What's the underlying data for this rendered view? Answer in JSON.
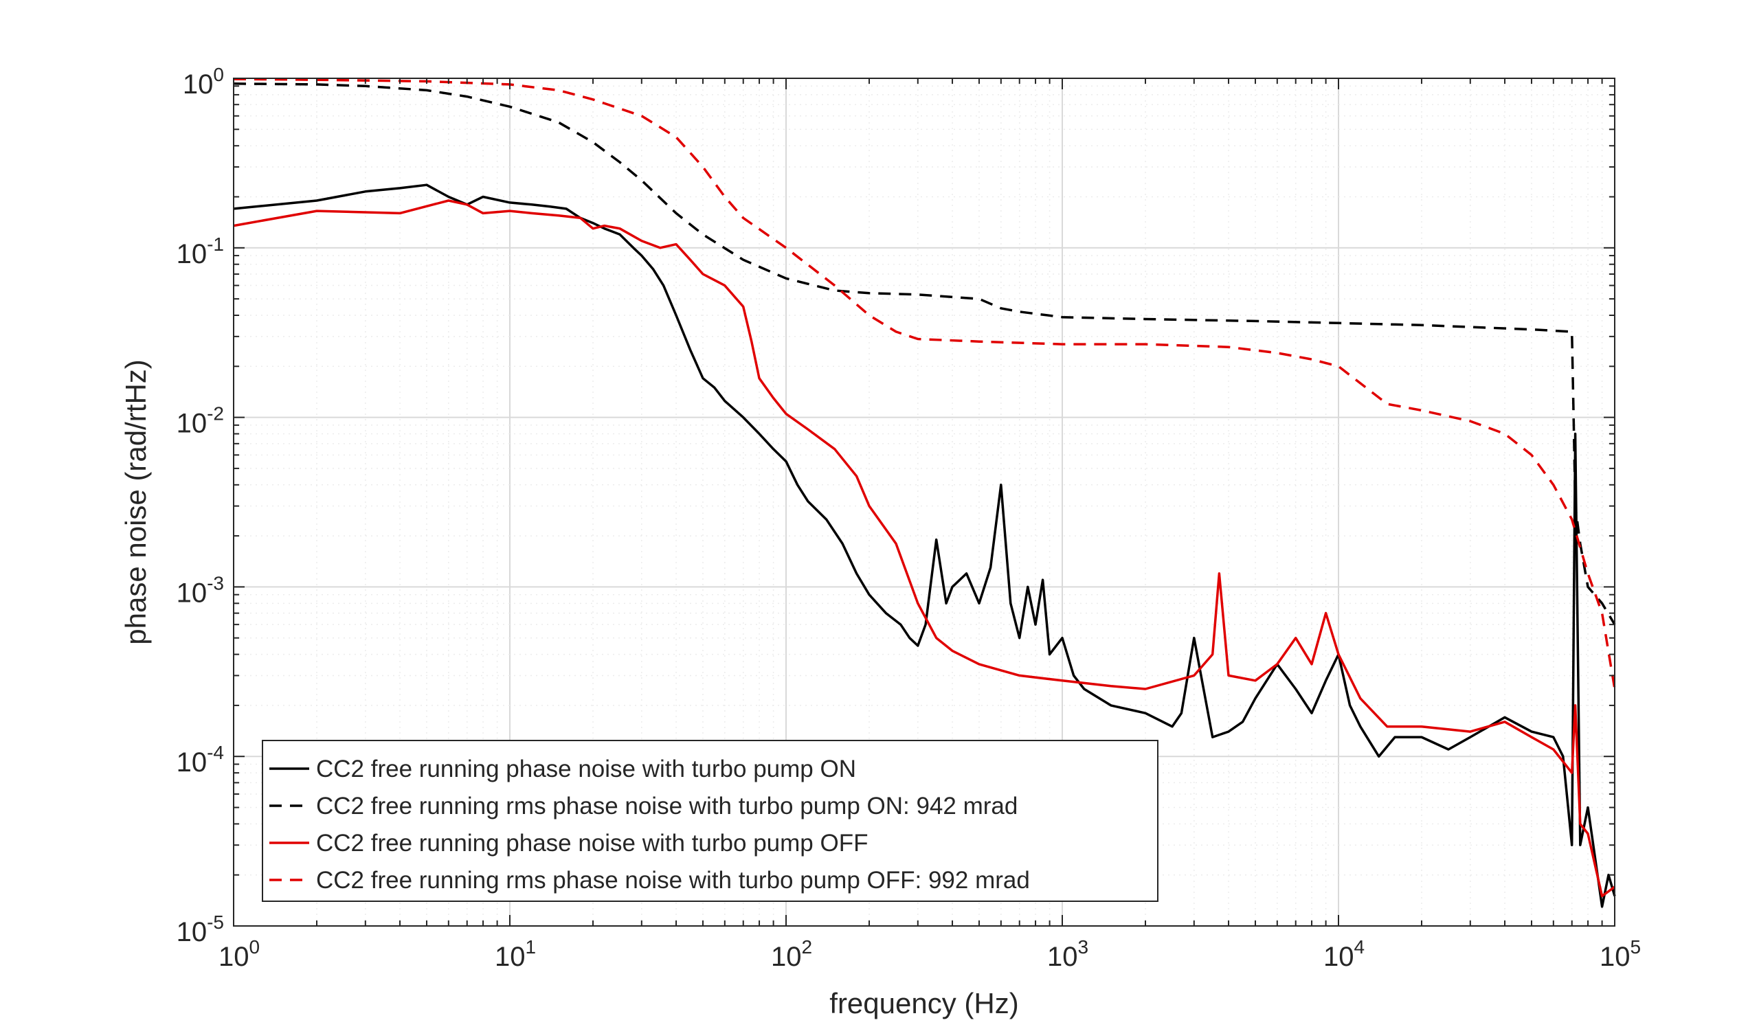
{
  "chart_data": {
    "type": "line",
    "title": "",
    "xlabel": "frequency (Hz)",
    "ylabel": "phase noise (rad/rtHz)",
    "x_scale": "log",
    "y_scale": "log",
    "xlim": [
      1,
      100000
    ],
    "ylim": [
      1e-05,
      1
    ],
    "grid": true,
    "legend_position": "bottom-left",
    "x_ticks": [
      {
        "value": 1,
        "base": "10",
        "exp": "0"
      },
      {
        "value": 10,
        "base": "10",
        "exp": "1"
      },
      {
        "value": 100,
        "base": "10",
        "exp": "2"
      },
      {
        "value": 1000,
        "base": "10",
        "exp": "3"
      },
      {
        "value": 10000,
        "base": "10",
        "exp": "4"
      },
      {
        "value": 100000,
        "base": "10",
        "exp": "5"
      }
    ],
    "y_ticks": [
      {
        "value": 1,
        "base": "10",
        "exp": "0"
      },
      {
        "value": 0.1,
        "base": "10",
        "exp": "-1"
      },
      {
        "value": 0.01,
        "base": "10",
        "exp": "-2"
      },
      {
        "value": 0.001,
        "base": "10",
        "exp": "-3"
      },
      {
        "value": 0.0001,
        "base": "10",
        "exp": "-4"
      },
      {
        "value": 1e-05,
        "base": "10",
        "exp": "-5"
      }
    ],
    "series": [
      {
        "name": "CC2 free running phase noise with turbo pump ON",
        "color": "#000000",
        "dash": "solid",
        "x": [
          1,
          2,
          3,
          4,
          5,
          6,
          7,
          8,
          10,
          12,
          14,
          16,
          18,
          20,
          22,
          25,
          28,
          30,
          33,
          36,
          40,
          45,
          50,
          55,
          60,
          70,
          80,
          90,
          100,
          110,
          120,
          140,
          160,
          180,
          200,
          230,
          260,
          280,
          300,
          320,
          350,
          380,
          400,
          450,
          500,
          550,
          600,
          650,
          700,
          750,
          800,
          850,
          900,
          1000,
          1100,
          1200,
          1500,
          2000,
          2500,
          2700,
          3000,
          3500,
          4000,
          4500,
          5000,
          6000,
          7000,
          8000,
          9000,
          10000,
          11000,
          12000,
          14000,
          16000,
          20000,
          25000,
          30000,
          40000,
          50000,
          60000,
          65000,
          70000,
          72000,
          75000,
          80000,
          85000,
          90000,
          95000,
          100000
        ],
        "y": [
          0.17,
          0.19,
          0.215,
          0.225,
          0.235,
          0.2,
          0.18,
          0.2,
          0.185,
          0.18,
          0.175,
          0.17,
          0.15,
          0.14,
          0.13,
          0.12,
          0.1,
          0.09,
          0.075,
          0.06,
          0.04,
          0.025,
          0.017,
          0.015,
          0.0125,
          0.01,
          0.008,
          0.0065,
          0.0055,
          0.004,
          0.0032,
          0.0025,
          0.0018,
          0.0012,
          0.0009,
          0.0007,
          0.0006,
          0.0005,
          0.00045,
          0.0006,
          0.0019,
          0.0008,
          0.001,
          0.0012,
          0.0008,
          0.0013,
          0.004,
          0.0008,
          0.0005,
          0.001,
          0.0006,
          0.0011,
          0.0004,
          0.0005,
          0.0003,
          0.00025,
          0.0002,
          0.00018,
          0.00015,
          0.00018,
          0.0005,
          0.00013,
          0.00014,
          0.00016,
          0.00022,
          0.00035,
          0.00025,
          0.00018,
          0.00028,
          0.0004,
          0.0002,
          0.00015,
          0.0001,
          0.00013,
          0.00013,
          0.00011,
          0.00013,
          0.00017,
          0.00014,
          0.00013,
          0.0001,
          3e-05,
          0.008,
          3e-05,
          5e-05,
          2.5e-05,
          1.3e-05,
          2e-05,
          1.5e-05
        ]
      },
      {
        "name": "CC2 free running rms phase noise with turbo pump ON: 942 mrad",
        "color": "#000000",
        "dash": "dashed",
        "x": [
          1,
          2,
          3,
          5,
          7,
          10,
          15,
          20,
          25,
          30,
          40,
          50,
          70,
          100,
          150,
          200,
          300,
          500,
          600,
          700,
          1000,
          2000,
          5000,
          10000,
          20000,
          50000,
          70000,
          71000,
          72000,
          75000,
          80000,
          90000,
          100000
        ],
        "y": [
          0.93,
          0.92,
          0.9,
          0.85,
          0.78,
          0.68,
          0.55,
          0.42,
          0.32,
          0.25,
          0.16,
          0.12,
          0.085,
          0.066,
          0.056,
          0.054,
          0.053,
          0.05,
          0.044,
          0.042,
          0.039,
          0.038,
          0.037,
          0.036,
          0.035,
          0.033,
          0.032,
          0.01,
          0.003,
          0.0018,
          0.001,
          0.0008,
          0.0006
        ]
      },
      {
        "name": "CC2 free running phase noise with turbo pump OFF",
        "color": "#e00000",
        "dash": "solid",
        "x": [
          1,
          2,
          4,
          6,
          7,
          8,
          10,
          12,
          15,
          18,
          20,
          22,
          25,
          30,
          35,
          40,
          45,
          50,
          60,
          70,
          75,
          80,
          90,
          100,
          120,
          150,
          180,
          200,
          250,
          300,
          350,
          400,
          500,
          700,
          1000,
          1500,
          2000,
          3000,
          3500,
          3700,
          4000,
          5000,
          6000,
          7000,
          8000,
          9000,
          10000,
          12000,
          15000,
          20000,
          30000,
          40000,
          50000,
          60000,
          70000,
          72000,
          75000,
          80000,
          90000,
          100000
        ],
        "y": [
          0.135,
          0.165,
          0.16,
          0.19,
          0.18,
          0.16,
          0.165,
          0.16,
          0.155,
          0.15,
          0.13,
          0.135,
          0.13,
          0.11,
          0.1,
          0.105,
          0.085,
          0.07,
          0.06,
          0.045,
          0.028,
          0.017,
          0.013,
          0.0105,
          0.0085,
          0.0065,
          0.0045,
          0.003,
          0.0018,
          0.0008,
          0.0005,
          0.00042,
          0.00035,
          0.0003,
          0.00028,
          0.00026,
          0.00025,
          0.0003,
          0.0004,
          0.0012,
          0.0003,
          0.00028,
          0.00035,
          0.0005,
          0.00035,
          0.0007,
          0.0004,
          0.00022,
          0.00015,
          0.00015,
          0.00014,
          0.00016,
          0.00013,
          0.00011,
          8e-05,
          0.0002,
          4e-05,
          3.5e-05,
          1.5e-05,
          1.7e-05
        ]
      },
      {
        "name": "CC2 free running rms phase noise with turbo pump OFF: 992 mrad",
        "color": "#e00000",
        "dash": "dashed",
        "x": [
          1,
          2,
          5,
          10,
          15,
          20,
          30,
          40,
          50,
          60,
          70,
          100,
          150,
          200,
          250,
          300,
          500,
          1000,
          2000,
          4000,
          6000,
          8000,
          10000,
          15000,
          20000,
          30000,
          40000,
          50000,
          60000,
          70000,
          80000,
          90000,
          100000
        ],
        "y": [
          0.99,
          0.98,
          0.96,
          0.92,
          0.85,
          0.75,
          0.6,
          0.45,
          0.3,
          0.2,
          0.15,
          0.1,
          0.06,
          0.04,
          0.032,
          0.029,
          0.028,
          0.027,
          0.027,
          0.026,
          0.024,
          0.022,
          0.02,
          0.012,
          0.011,
          0.0095,
          0.008,
          0.006,
          0.004,
          0.0025,
          0.0012,
          0.0007,
          0.00025
        ]
      }
    ]
  }
}
